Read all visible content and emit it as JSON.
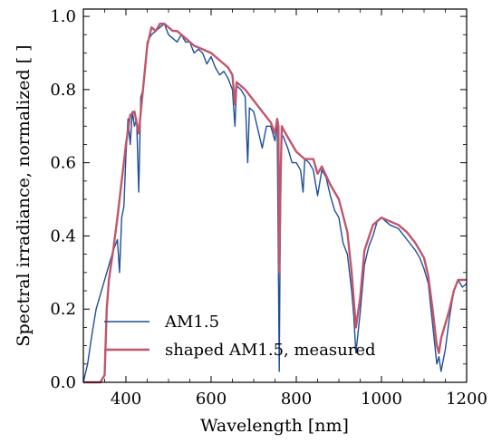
{
  "chart_data": {
    "type": "line",
    "xlabel": "Wavelength [nm]",
    "ylabel": "Spectral irradiance, normalized [ ]",
    "xlim": [
      300,
      1200
    ],
    "ylim": [
      0,
      1.02
    ],
    "xticks": [
      400,
      600,
      800,
      1000,
      1200
    ],
    "xtick_labels": [
      "400",
      "600",
      "800",
      "1000",
      "1200"
    ],
    "yticks": [
      0,
      0.2,
      0.4,
      0.6,
      0.8,
      1.0
    ],
    "ytick_labels": [
      "0.0",
      "0.2",
      "0.4",
      "0.6",
      "0.8",
      "1.0"
    ],
    "grid": false,
    "legend_position": "lower-left",
    "series": [
      {
        "name": "AM1.5",
        "color": "#1f4e96",
        "x": [
          300,
          310,
          320,
          330,
          340,
          350,
          360,
          370,
          380,
          385,
          390,
          395,
          400,
          405,
          410,
          415,
          420,
          425,
          430,
          435,
          440,
          445,
          450,
          455,
          460,
          470,
          480,
          490,
          500,
          510,
          520,
          530,
          540,
          550,
          560,
          570,
          580,
          590,
          600,
          610,
          620,
          630,
          640,
          650,
          656,
          660,
          670,
          680,
          686,
          690,
          700,
          710,
          720,
          730,
          740,
          750,
          755,
          760,
          762,
          765,
          770,
          780,
          790,
          800,
          810,
          816,
          820,
          830,
          840,
          850,
          860,
          870,
          880,
          890,
          900,
          910,
          920,
          930,
          935,
          940,
          950,
          960,
          970,
          980,
          990,
          1000,
          1010,
          1020,
          1040,
          1060,
          1080,
          1090,
          1100,
          1110,
          1120,
          1130,
          1135,
          1140,
          1150,
          1160,
          1170,
          1180,
          1190,
          1200
        ],
        "y": [
          0.0,
          0.05,
          0.13,
          0.2,
          0.24,
          0.28,
          0.32,
          0.36,
          0.39,
          0.3,
          0.45,
          0.48,
          0.62,
          0.72,
          0.65,
          0.74,
          0.7,
          0.72,
          0.52,
          0.78,
          0.8,
          0.85,
          0.93,
          0.94,
          0.95,
          0.96,
          0.97,
          0.98,
          0.95,
          0.94,
          0.93,
          0.95,
          0.93,
          0.93,
          0.9,
          0.91,
          0.9,
          0.87,
          0.89,
          0.86,
          0.84,
          0.85,
          0.83,
          0.8,
          0.7,
          0.81,
          0.8,
          0.78,
          0.6,
          0.75,
          0.74,
          0.69,
          0.64,
          0.7,
          0.7,
          0.66,
          0.72,
          0.03,
          0.35,
          0.68,
          0.67,
          0.64,
          0.6,
          0.6,
          0.58,
          0.52,
          0.61,
          0.6,
          0.58,
          0.51,
          0.58,
          0.56,
          0.51,
          0.47,
          0.45,
          0.38,
          0.35,
          0.25,
          0.18,
          0.08,
          0.19,
          0.32,
          0.37,
          0.4,
          0.44,
          0.45,
          0.44,
          0.43,
          0.42,
          0.39,
          0.36,
          0.34,
          0.31,
          0.27,
          0.16,
          0.05,
          0.07,
          0.03,
          0.09,
          0.18,
          0.25,
          0.28,
          0.26,
          0.27
        ]
      },
      {
        "name": "shaped AM1.5, measured",
        "color": "#c0566c",
        "x": [
          300,
          340,
          350,
          355,
          360,
          365,
          370,
          380,
          390,
          400,
          410,
          420,
          430,
          440,
          450,
          460,
          470,
          480,
          490,
          500,
          510,
          520,
          540,
          560,
          580,
          600,
          620,
          640,
          650,
          656,
          660,
          680,
          700,
          720,
          740,
          750,
          755,
          758,
          760,
          763,
          766,
          770,
          780,
          800,
          820,
          840,
          850,
          860,
          880,
          900,
          920,
          930,
          940,
          950,
          960,
          980,
          1000,
          1020,
          1040,
          1060,
          1080,
          1100,
          1110,
          1120,
          1130,
          1135,
          1140,
          1150,
          1160,
          1170,
          1180,
          1190,
          1200
        ],
        "y": [
          0.0,
          0.0,
          0.02,
          0.2,
          0.28,
          0.32,
          0.36,
          0.45,
          0.55,
          0.65,
          0.73,
          0.74,
          0.68,
          0.8,
          0.92,
          0.97,
          0.96,
          0.98,
          0.98,
          0.97,
          0.96,
          0.96,
          0.94,
          0.92,
          0.91,
          0.9,
          0.88,
          0.86,
          0.84,
          0.76,
          0.82,
          0.8,
          0.77,
          0.74,
          0.71,
          0.68,
          0.72,
          0.7,
          0.3,
          0.55,
          0.7,
          0.69,
          0.67,
          0.63,
          0.61,
          0.61,
          0.57,
          0.59,
          0.54,
          0.5,
          0.41,
          0.3,
          0.15,
          0.23,
          0.36,
          0.43,
          0.45,
          0.44,
          0.43,
          0.41,
          0.38,
          0.34,
          0.29,
          0.2,
          0.1,
          0.08,
          0.12,
          0.16,
          0.2,
          0.25,
          0.28,
          0.28,
          0.28
        ]
      }
    ]
  }
}
